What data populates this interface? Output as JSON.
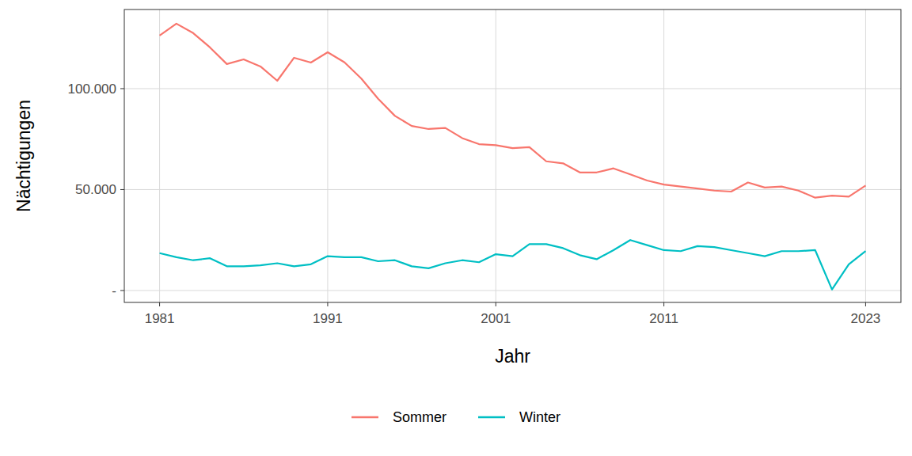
{
  "chart_data": {
    "type": "line",
    "x_label": "Jahr",
    "y_label": "Nächtigungen",
    "x": [
      1981,
      1982,
      1983,
      1984,
      1985,
      1986,
      1987,
      1988,
      1989,
      1990,
      1991,
      1992,
      1993,
      1994,
      1995,
      1996,
      1997,
      1998,
      1999,
      2000,
      2001,
      2002,
      2003,
      2004,
      2005,
      2006,
      2007,
      2008,
      2009,
      2010,
      2011,
      2012,
      2013,
      2014,
      2015,
      2016,
      2017,
      2018,
      2019,
      2020,
      2021,
      2022,
      2023
    ],
    "series": [
      {
        "name": "Sommer",
        "color": "#F8766D",
        "values": [
          126300,
          132200,
          127500,
          120400,
          112200,
          114500,
          111000,
          103900,
          115300,
          112900,
          118000,
          113000,
          105000,
          95000,
          86500,
          81500,
          80000,
          80500,
          75500,
          72500,
          72000,
          70500,
          71000,
          64000,
          63000,
          58500,
          58500,
          60500,
          57500,
          54500,
          52500,
          51500,
          50500,
          49500,
          49000,
          53500,
          51000,
          51500,
          49500,
          46000,
          47000,
          46500,
          52000
        ]
      },
      {
        "name": "Winter",
        "color": "#00BFC4",
        "values": [
          18500,
          16500,
          15000,
          16000,
          12000,
          12000,
          12500,
          13500,
          12000,
          13000,
          17000,
          16500,
          16500,
          14500,
          15000,
          12000,
          11000,
          13500,
          15000,
          14000,
          18000,
          17000,
          23000,
          23000,
          21000,
          17500,
          15500,
          20000,
          25000,
          22500,
          20000,
          19500,
          22000,
          21500,
          20000,
          18500,
          17000,
          19500,
          19500,
          20000,
          500,
          13000,
          19500
        ]
      }
    ],
    "xlim": [
      1978.9,
      2025.1
    ],
    "ylim": [
      -5900,
      139200
    ],
    "xticks": [
      1981,
      1991,
      2001,
      2011,
      2023
    ],
    "yticks": [
      {
        "value": 0,
        "label": "-"
      },
      {
        "value": 50000,
        "label": "50.000"
      },
      {
        "value": 100000,
        "label": "100.000"
      }
    ],
    "grid": true,
    "legend": "bottom"
  }
}
